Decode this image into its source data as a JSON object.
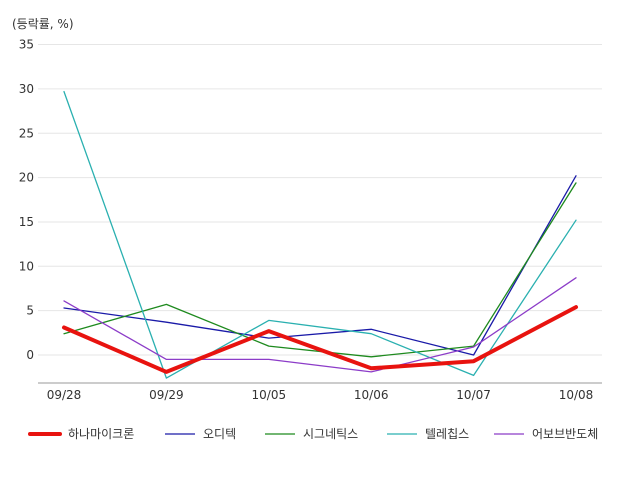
{
  "chart_data": {
    "type": "line",
    "unit_label": "(등락률, %)",
    "categories": [
      "09/28",
      "09/29",
      "10/05",
      "10/06",
      "10/07",
      "10/08"
    ],
    "ylim": [
      -3,
      35
    ],
    "yticks": [
      0,
      5,
      10,
      15,
      20,
      25,
      30,
      35
    ],
    "grid": true,
    "legend_position": "bottom",
    "series": [
      {
        "name": "하나마이크론",
        "color": "#e8130f",
        "emphasis": true,
        "values": [
          3.1,
          -1.9,
          2.7,
          -1.5,
          -0.7,
          5.4
        ]
      },
      {
        "name": "오디텍",
        "color": "#1a1aa8",
        "emphasis": false,
        "values": [
          5.3,
          3.7,
          1.9,
          2.9,
          0.0,
          20.2
        ]
      },
      {
        "name": "시그네틱스",
        "color": "#1e8a1e",
        "emphasis": false,
        "values": [
          2.4,
          5.7,
          1.0,
          -0.2,
          1.0,
          19.4
        ]
      },
      {
        "name": "텔레칩스",
        "color": "#2ab0b0",
        "emphasis": false,
        "values": [
          29.7,
          -2.6,
          3.9,
          2.4,
          -2.3,
          15.2
        ]
      },
      {
        "name": "어보브반도체",
        "color": "#8c3cc8",
        "emphasis": false,
        "values": [
          6.1,
          -0.5,
          -0.5,
          -1.9,
          0.9,
          8.7
        ]
      }
    ]
  }
}
